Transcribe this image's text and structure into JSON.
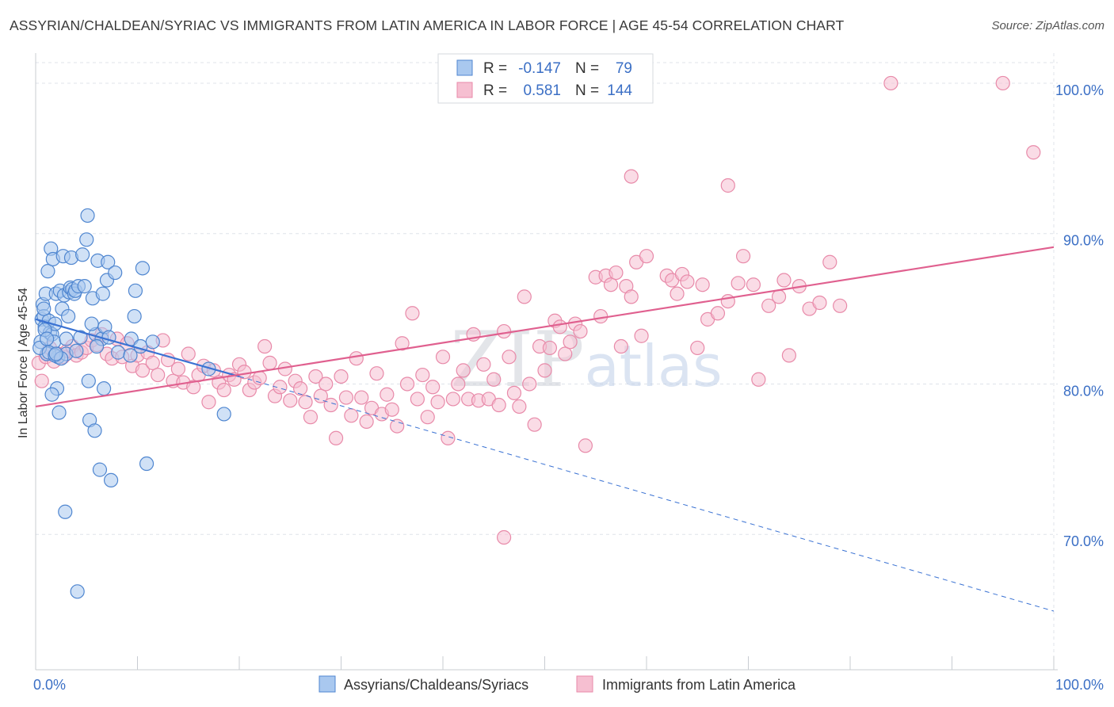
{
  "title": "ASSYRIAN/CHALDEAN/SYRIAC VS IMMIGRANTS FROM LATIN AMERICA IN LABOR FORCE | AGE 45-54 CORRELATION CHART",
  "source": "Source: ZipAtlas.com",
  "colors": {
    "blue_fill": "#a9c8ef",
    "blue_stroke": "#4f86d0",
    "blue_line": "#3a72d3",
    "pink_fill": "#f6bfd1",
    "pink_stroke": "#e88aa9",
    "pink_line": "#e0608f",
    "axis_text": "#3b6fc5",
    "grid": "#dfe3ea"
  },
  "chart_data": {
    "type": "scatter",
    "xlabel": "",
    "ylabel": "In Labor Force | Age 45-54",
    "xlim": [
      0,
      100
    ],
    "ylim": [
      61,
      102
    ],
    "x_tick_labels": [
      "0.0%",
      "100.0%"
    ],
    "y_ticks": [
      70,
      80,
      90,
      100
    ],
    "y_tick_labels": [
      "70.0%",
      "80.0%",
      "90.0%",
      "100.0%"
    ],
    "watermark": "ZIPatlas",
    "stats": [
      {
        "r_label": "R =",
        "r": "-0.147",
        "n_label": "N =",
        "n": "79"
      },
      {
        "r_label": "R =",
        "r": "0.581",
        "n_label": "N =",
        "n": "144"
      }
    ],
    "series": [
      {
        "name": "Assyrians/Chaldeans/Syriacs",
        "trend": {
          "x0": 0,
          "y0": 84.3,
          "x1": 20,
          "y1": 80.5,
          "dash_to_x": 100,
          "dash_to_y": 64.9
        },
        "points": [
          [
            0.5,
            82.8
          ],
          [
            0.6,
            84.3
          ],
          [
            0.7,
            85.3
          ],
          [
            0.8,
            84.5
          ],
          [
            0.9,
            83.8
          ],
          [
            1.0,
            86.0
          ],
          [
            1.1,
            82.0
          ],
          [
            1.2,
            87.5
          ],
          [
            1.3,
            84.2
          ],
          [
            1.4,
            83.4
          ],
          [
            1.5,
            89.0
          ],
          [
            1.6,
            83.3
          ],
          [
            1.7,
            88.3
          ],
          [
            1.8,
            82.8
          ],
          [
            1.9,
            84.0
          ],
          [
            2.0,
            86.0
          ],
          [
            2.1,
            79.7
          ],
          [
            2.2,
            81.8
          ],
          [
            2.3,
            78.1
          ],
          [
            2.4,
            86.2
          ],
          [
            2.6,
            85.0
          ],
          [
            2.7,
            88.5
          ],
          [
            2.8,
            85.9
          ],
          [
            2.9,
            71.5
          ],
          [
            3.0,
            82.0
          ],
          [
            3.2,
            84.5
          ],
          [
            3.3,
            86.1
          ],
          [
            3.4,
            86.4
          ],
          [
            3.5,
            88.4
          ],
          [
            3.6,
            86.3
          ],
          [
            3.8,
            86.0
          ],
          [
            3.9,
            86.2
          ],
          [
            4.1,
            66.2
          ],
          [
            4.2,
            86.5
          ],
          [
            4.4,
            83.1
          ],
          [
            4.6,
            88.6
          ],
          [
            4.8,
            86.5
          ],
          [
            5.0,
            89.6
          ],
          [
            5.1,
            91.2
          ],
          [
            5.2,
            80.2
          ],
          [
            5.3,
            77.6
          ],
          [
            5.6,
            85.7
          ],
          [
            5.8,
            76.9
          ],
          [
            5.9,
            83.3
          ],
          [
            6.1,
            88.2
          ],
          [
            6.3,
            74.3
          ],
          [
            6.5,
            83.0
          ],
          [
            6.6,
            86.0
          ],
          [
            6.7,
            79.7
          ],
          [
            6.8,
            83.8
          ],
          [
            7.0,
            86.9
          ],
          [
            7.1,
            88.1
          ],
          [
            7.2,
            83.1
          ],
          [
            7.4,
            73.6
          ],
          [
            7.8,
            87.4
          ],
          [
            8.1,
            82.1
          ],
          [
            9.3,
            81.9
          ],
          [
            9.4,
            83.0
          ],
          [
            9.7,
            84.5
          ],
          [
            9.8,
            86.2
          ],
          [
            10.3,
            82.5
          ],
          [
            10.5,
            87.7
          ],
          [
            10.9,
            74.7
          ],
          [
            11.5,
            82.8
          ],
          [
            0.4,
            82.4
          ],
          [
            0.9,
            83.6
          ],
          [
            1.3,
            82.1
          ],
          [
            1.6,
            79.3
          ],
          [
            1.9,
            81.9
          ],
          [
            2.5,
            81.7
          ],
          [
            18.5,
            78.0
          ],
          [
            17.0,
            81.0
          ],
          [
            0.8,
            85.0
          ],
          [
            1.1,
            83.0
          ],
          [
            2.0,
            82.0
          ],
          [
            3.0,
            83.0
          ],
          [
            4.0,
            82.2
          ],
          [
            5.5,
            84.0
          ],
          [
            6.0,
            82.5
          ]
        ]
      },
      {
        "name": "Immigrants from Latin America",
        "trend": {
          "x0": 0,
          "y0": 78.5,
          "x1": 100,
          "y1": 89.1
        },
        "points": [
          [
            0.3,
            81.4
          ],
          [
            0.6,
            80.2
          ],
          [
            1.0,
            81.8
          ],
          [
            1.4,
            82.4
          ],
          [
            1.8,
            81.5
          ],
          [
            2.2,
            82.0
          ],
          [
            2.7,
            81.8
          ],
          [
            3.1,
            82.2
          ],
          [
            3.6,
            82.5
          ],
          [
            4.0,
            81.9
          ],
          [
            4.5,
            82.1
          ],
          [
            5.0,
            82.4
          ],
          [
            5.5,
            82.9
          ],
          [
            6.0,
            82.6
          ],
          [
            6.5,
            83.3
          ],
          [
            7.0,
            82.0
          ],
          [
            7.5,
            81.7
          ],
          [
            8.0,
            83.0
          ],
          [
            8.5,
            81.8
          ],
          [
            9.0,
            82.7
          ],
          [
            9.5,
            81.2
          ],
          [
            10.0,
            81.9
          ],
          [
            10.5,
            80.9
          ],
          [
            11.0,
            82.1
          ],
          [
            11.5,
            81.4
          ],
          [
            12.0,
            80.6
          ],
          [
            12.5,
            82.9
          ],
          [
            13.0,
            81.6
          ],
          [
            13.5,
            80.2
          ],
          [
            14.0,
            81.0
          ],
          [
            14.5,
            80.1
          ],
          [
            15.0,
            82.0
          ],
          [
            15.5,
            79.8
          ],
          [
            16.0,
            80.6
          ],
          [
            16.5,
            81.2
          ],
          [
            17.0,
            78.8
          ],
          [
            17.5,
            80.9
          ],
          [
            18.0,
            80.1
          ],
          [
            18.5,
            79.6
          ],
          [
            19.0,
            80.6
          ],
          [
            19.5,
            80.3
          ],
          [
            20.0,
            81.3
          ],
          [
            20.5,
            80.8
          ],
          [
            21.0,
            79.6
          ],
          [
            21.5,
            80.1
          ],
          [
            22.0,
            80.4
          ],
          [
            22.5,
            82.5
          ],
          [
            23.0,
            81.4
          ],
          [
            23.5,
            79.2
          ],
          [
            24.0,
            79.8
          ],
          [
            24.5,
            81.0
          ],
          [
            25.0,
            78.9
          ],
          [
            25.5,
            80.2
          ],
          [
            26.0,
            79.7
          ],
          [
            26.5,
            78.8
          ],
          [
            27.0,
            77.8
          ],
          [
            27.5,
            80.5
          ],
          [
            28.0,
            79.2
          ],
          [
            28.5,
            80.0
          ],
          [
            29.0,
            78.6
          ],
          [
            29.5,
            76.4
          ],
          [
            30.0,
            80.5
          ],
          [
            30.5,
            79.1
          ],
          [
            31.0,
            77.9
          ],
          [
            31.5,
            81.7
          ],
          [
            32.0,
            79.1
          ],
          [
            32.5,
            77.5
          ],
          [
            33.0,
            78.4
          ],
          [
            33.5,
            80.7
          ],
          [
            34.0,
            78.0
          ],
          [
            34.5,
            79.3
          ],
          [
            35.0,
            78.3
          ],
          [
            35.5,
            77.2
          ],
          [
            36.0,
            82.7
          ],
          [
            36.5,
            80.0
          ],
          [
            37.0,
            84.7
          ],
          [
            37.5,
            79.0
          ],
          [
            38.0,
            80.6
          ],
          [
            38.5,
            77.8
          ],
          [
            39.0,
            79.8
          ],
          [
            39.5,
            78.8
          ],
          [
            40.0,
            81.8
          ],
          [
            40.5,
            76.4
          ],
          [
            41.0,
            79.0
          ],
          [
            41.5,
            80.0
          ],
          [
            42.0,
            80.9
          ],
          [
            42.5,
            79.0
          ],
          [
            43.0,
            83.3
          ],
          [
            43.5,
            78.9
          ],
          [
            44.0,
            81.3
          ],
          [
            44.5,
            79.0
          ],
          [
            45.0,
            80.3
          ],
          [
            45.5,
            78.6
          ],
          [
            46.0,
            83.5
          ],
          [
            46.5,
            81.8
          ],
          [
            47.0,
            79.4
          ],
          [
            47.5,
            78.5
          ],
          [
            48.0,
            85.8
          ],
          [
            48.5,
            80.0
          ],
          [
            49.0,
            77.3
          ],
          [
            49.5,
            82.5
          ],
          [
            50.0,
            80.9
          ],
          [
            50.5,
            82.4
          ],
          [
            51.0,
            84.2
          ],
          [
            51.5,
            83.8
          ],
          [
            52.0,
            82.0
          ],
          [
            52.5,
            82.8
          ],
          [
            53.0,
            84.0
          ],
          [
            53.5,
            83.5
          ],
          [
            54.0,
            75.9
          ],
          [
            55.0,
            87.1
          ],
          [
            55.5,
            84.5
          ],
          [
            56.0,
            87.2
          ],
          [
            56.5,
            86.6
          ],
          [
            57.0,
            87.4
          ],
          [
            57.5,
            82.5
          ],
          [
            58.0,
            86.5
          ],
          [
            58.5,
            85.8
          ],
          [
            59.0,
            88.1
          ],
          [
            59.5,
            83.2
          ],
          [
            60.0,
            88.5
          ],
          [
            62.0,
            87.2
          ],
          [
            62.5,
            86.9
          ],
          [
            63.0,
            86.0
          ],
          [
            63.5,
            87.3
          ],
          [
            64.0,
            86.8
          ],
          [
            65.0,
            82.4
          ],
          [
            65.5,
            86.6
          ],
          [
            66.0,
            84.3
          ],
          [
            67.0,
            84.7
          ],
          [
            68.0,
            85.5
          ],
          [
            69.0,
            86.7
          ],
          [
            69.5,
            88.5
          ],
          [
            70.5,
            86.6
          ],
          [
            71.0,
            80.3
          ],
          [
            72.0,
            85.2
          ],
          [
            73.0,
            85.8
          ],
          [
            73.5,
            86.9
          ],
          [
            74.0,
            81.9
          ],
          [
            75.0,
            86.5
          ],
          [
            76.0,
            85.0
          ],
          [
            77.0,
            85.4
          ],
          [
            78.0,
            88.1
          ],
          [
            79.0,
            85.2
          ],
          [
            68.0,
            93.2
          ],
          [
            84.0,
            100.0
          ],
          [
            95.0,
            100.0
          ],
          [
            98.0,
            95.4
          ],
          [
            46.0,
            69.8
          ],
          [
            58.5,
            93.8
          ]
        ]
      }
    ],
    "legend": [
      "Assyrians/Chaldeans/Syriacs",
      "Immigrants from Latin America"
    ]
  }
}
